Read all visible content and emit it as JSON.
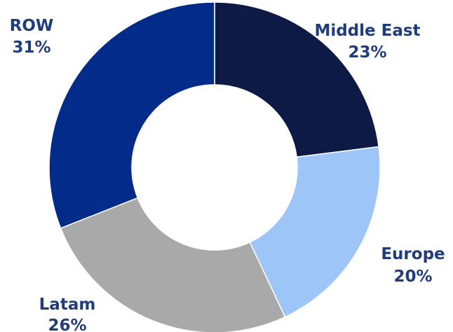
{
  "chart_data": {
    "type": "pie",
    "donut": true,
    "title": "",
    "slices": [
      {
        "label": "Middle East",
        "value": 23,
        "value_label": "23%",
        "color": "#0c1a45"
      },
      {
        "label": "Europe",
        "value": 20,
        "value_label": "20%",
        "color": "#9ec5f7"
      },
      {
        "label": "Latam",
        "value": 26,
        "value_label": "26%",
        "color": "#a9a9a9"
      },
      {
        "label": "ROW",
        "value": 31,
        "value_label": "31%",
        "color": "#032b8a"
      }
    ],
    "legend": "none",
    "label_color": "#1f3d7a"
  }
}
